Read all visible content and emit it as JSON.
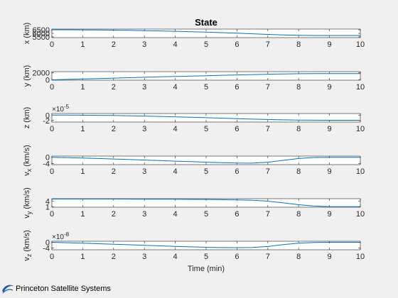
{
  "figure": {
    "title": "State",
    "xlabel": "Time (min)",
    "logo_text": "Princeton Satellite Systems",
    "line_color": "#0072bd",
    "axes_color": "#262626"
  },
  "chart_data": [
    {
      "type": "line",
      "ylabel": "x (km)",
      "xlim": [
        0,
        10
      ],
      "ylim": [
        5400,
        6600
      ],
      "x_ticks": [
        "0",
        "1",
        "2",
        "3",
        "4",
        "5",
        "6",
        "7",
        "8",
        "9",
        "10"
      ],
      "y_ticks": [
        {
          "value": 5500,
          "label": "5500"
        },
        {
          "value": 6000,
          "label": "6000"
        },
        {
          "value": 6500,
          "label": "6500"
        }
      ],
      "x": [
        0,
        0.5,
        1,
        1.5,
        2,
        2.5,
        3,
        3.5,
        4,
        4.5,
        5,
        5.5,
        6,
        6.5,
        7,
        7.5,
        8,
        8.5,
        9,
        9.5,
        10
      ],
      "values": [
        6500,
        6497,
        6488,
        6472,
        6450,
        6420,
        6384,
        6340,
        6290,
        6232,
        6168,
        6096,
        6018,
        5935,
        5850,
        5780,
        5730,
        5705,
        5700,
        5700,
        5700
      ]
    },
    {
      "type": "line",
      "ylabel": "y (km)",
      "xlim": [
        0,
        10
      ],
      "ylim": [
        -100,
        2300
      ],
      "x_ticks": [
        "0",
        "1",
        "2",
        "3",
        "4",
        "5",
        "6",
        "7",
        "8",
        "9",
        "10"
      ],
      "y_ticks": [
        {
          "value": 0,
          "label": "0"
        },
        {
          "value": 2000,
          "label": "2000"
        }
      ],
      "x": [
        0,
        0.5,
        1,
        1.5,
        2,
        2.5,
        3,
        3.5,
        4,
        4.5,
        5,
        5.5,
        6,
        6.5,
        7,
        7.5,
        8,
        8.5,
        9,
        9.5,
        10
      ],
      "values": [
        0,
        120,
        240,
        360,
        480,
        600,
        715,
        830,
        945,
        1055,
        1165,
        1275,
        1380,
        1480,
        1580,
        1660,
        1715,
        1740,
        1750,
        1750,
        1750
      ]
    },
    {
      "type": "line",
      "ylabel": "z (km)",
      "exponent": "×10",
      "exponent_power": "-5",
      "xlim": [
        0,
        10
      ],
      "ylim": [
        -2.6,
        0.6
      ],
      "x_ticks": [
        "0",
        "1",
        "2",
        "3",
        "4",
        "5",
        "6",
        "7",
        "8",
        "9",
        "10"
      ],
      "y_ticks": [
        {
          "value": -2,
          "label": "-2"
        },
        {
          "value": 0,
          "label": "0"
        }
      ],
      "x": [
        0,
        0.5,
        1,
        1.5,
        2,
        2.5,
        3,
        3.5,
        4,
        4.5,
        5,
        5.5,
        6,
        6.5,
        7,
        7.5,
        8,
        8.5,
        9,
        9.5,
        10
      ],
      "values": [
        0,
        -0.01,
        -0.04,
        -0.09,
        -0.16,
        -0.25,
        -0.36,
        -0.49,
        -0.64,
        -0.8,
        -0.97,
        -1.14,
        -1.32,
        -1.5,
        -1.65,
        -1.78,
        -1.87,
        -1.92,
        -1.94,
        -1.94,
        -1.94
      ]
    },
    {
      "type": "line",
      "ylabel": "v",
      "ylabel_sub": "x",
      "ylabel_unit": " (km/s)",
      "xlim": [
        0,
        10
      ],
      "ylim": [
        -4.8,
        0.8
      ],
      "x_ticks": [
        "0",
        "1",
        "2",
        "3",
        "4",
        "5",
        "6",
        "7",
        "8",
        "9",
        "10"
      ],
      "y_ticks": [
        {
          "value": -4,
          "label": "-4"
        },
        {
          "value": 0,
          "label": "0"
        }
      ],
      "x": [
        0,
        0.5,
        1,
        1.5,
        2,
        2.5,
        3,
        3.5,
        4,
        4.5,
        5,
        5.5,
        6,
        6.5,
        7,
        7.5,
        8,
        8.5,
        9,
        9.5,
        10
      ],
      "values": [
        0,
        -0.2,
        -0.5,
        -0.8,
        -1.1,
        -1.45,
        -1.8,
        -2.15,
        -2.5,
        -2.85,
        -3.2,
        -3.5,
        -3.75,
        -3.8,
        -3.2,
        -2,
        -0.8,
        -0.15,
        0,
        0,
        0
      ]
    },
    {
      "type": "line",
      "ylabel": "v",
      "ylabel_sub": "y",
      "ylabel_unit": " (km/s)",
      "xlim": [
        0,
        10
      ],
      "ylim": [
        0.8,
        5.2
      ],
      "x_ticks": [
        "0",
        "1",
        "2",
        "3",
        "4",
        "5",
        "6",
        "7",
        "8",
        "9",
        "10"
      ],
      "y_ticks": [
        {
          "value": 1,
          "label": "1"
        },
        {
          "value": 4,
          "label": "4"
        }
      ],
      "x": [
        0,
        0.5,
        1,
        1.5,
        2,
        2.5,
        3,
        3.5,
        4,
        4.5,
        5,
        5.5,
        6,
        6.5,
        7,
        7.5,
        8,
        8.5,
        9,
        9.5,
        10
      ],
      "values": [
        5,
        5,
        5,
        5,
        5,
        4.98,
        4.96,
        4.93,
        4.89,
        4.84,
        4.78,
        4.7,
        4.58,
        4.35,
        3.9,
        3.05,
        2.1,
        1.4,
        1.1,
        1.05,
        1.05
      ]
    },
    {
      "type": "line",
      "ylabel": "v",
      "ylabel_sub": "z",
      "ylabel_unit": " (km/s)",
      "exponent": "×10",
      "exponent_power": "-8",
      "xlim": [
        0,
        10
      ],
      "ylim": [
        -5.4,
        0.8
      ],
      "x_ticks": [
        "0",
        "1",
        "2",
        "3",
        "4",
        "5",
        "6",
        "7",
        "8",
        "9",
        "10"
      ],
      "y_ticks": [
        {
          "value": -4,
          "label": "-4"
        },
        {
          "value": 0,
          "label": "0"
        }
      ],
      "x": [
        0,
        0.5,
        1,
        1.5,
        2,
        2.5,
        3,
        3.5,
        4,
        4.5,
        5,
        5.5,
        6,
        6.5,
        7,
        7.5,
        8,
        8.5,
        9,
        9.5,
        10
      ],
      "values": [
        0,
        -0.3,
        -0.65,
        -1,
        -1.35,
        -1.75,
        -2.15,
        -2.55,
        -2.95,
        -3.3,
        -3.6,
        -3.8,
        -3.85,
        -3.7,
        -3,
        -1.7,
        -0.6,
        -0.1,
        0,
        0,
        0
      ]
    }
  ]
}
